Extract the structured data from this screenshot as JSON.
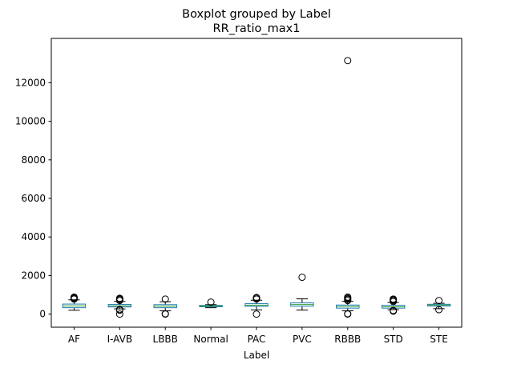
{
  "chart_data": {
    "type": "box",
    "title": "Boxplot grouped by Label",
    "subtitle": "RR_ratio_max1",
    "xlabel": "Label",
    "ylabel": "",
    "ylim": [
      -680,
      14300
    ],
    "yticks": [
      0,
      2000,
      4000,
      6000,
      8000,
      10000,
      12000
    ],
    "grid": false,
    "colors": {
      "box": "#1f77b4",
      "whisker": "#000000",
      "median": "#2ca02c",
      "flier": "#000000"
    },
    "categories": [
      "AF",
      "I-AVB",
      "LBBB",
      "Normal",
      "PAC",
      "PVC",
      "RBBB",
      "STD",
      "STE"
    ],
    "boxes": [
      {
        "label": "AF",
        "whislo": 200,
        "q1": 330,
        "med": 420,
        "q3": 520,
        "whishi": 740,
        "fliers": [
          780,
          820,
          850,
          880
        ]
      },
      {
        "label": "I-AVB",
        "whislo": 270,
        "q1": 370,
        "med": 430,
        "q3": 500,
        "whishi": 660,
        "fliers": [
          0,
          200,
          240,
          700,
          750,
          790,
          820
        ]
      },
      {
        "label": "LBBB",
        "whislo": 170,
        "q1": 330,
        "med": 410,
        "q3": 490,
        "whishi": 640,
        "fliers": [
          0,
          20,
          780
        ]
      },
      {
        "label": "Normal",
        "whislo": 330,
        "q1": 380,
        "med": 420,
        "q3": 450,
        "whishi": 490,
        "fliers": [
          620
        ]
      },
      {
        "label": "PAC",
        "whislo": 220,
        "q1": 400,
        "med": 460,
        "q3": 540,
        "whishi": 720,
        "fliers": [
          0,
          780,
          830,
          860
        ]
      },
      {
        "label": "PVC",
        "whislo": 210,
        "q1": 410,
        "med": 500,
        "q3": 580,
        "whishi": 790,
        "fliers": [
          1910
        ]
      },
      {
        "label": "RBBB",
        "whislo": 170,
        "q1": 310,
        "med": 400,
        "q3": 470,
        "whishi": 660,
        "fliers": [
          0,
          20,
          700,
          760,
          800,
          850,
          880,
          13150
        ]
      },
      {
        "label": "STD",
        "whislo": 230,
        "q1": 310,
        "med": 380,
        "q3": 460,
        "whishi": 600,
        "fliers": [
          150,
          190,
          650,
          700,
          740,
          780
        ]
      },
      {
        "label": "STE",
        "whislo": 280,
        "q1": 420,
        "med": 470,
        "q3": 510,
        "whishi": 560,
        "fliers": [
          230,
          700
        ]
      }
    ]
  }
}
